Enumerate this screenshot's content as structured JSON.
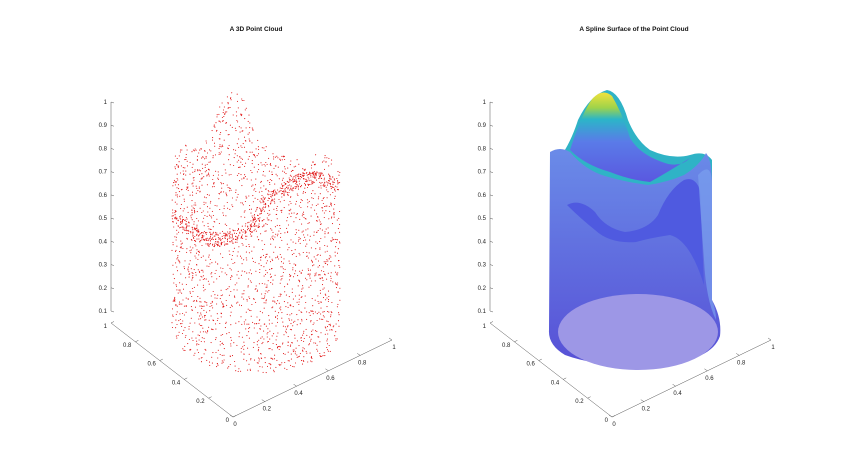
{
  "colors": {
    "point": "#e01010",
    "axis": "#555555",
    "surface_top": "#f2e23c",
    "surface_mid": "#2bb5c8",
    "surface_low": "#5a62e6",
    "surface_base": "#9d97e6"
  },
  "chart_data": [
    {
      "type": "scatter3d",
      "title": "A 3D Point Cloud",
      "xlim": [
        0,
        1
      ],
      "ylim": [
        0,
        1
      ],
      "zlim": [
        0.1,
        1
      ],
      "z_ticks": [
        "0.1",
        "0.2",
        "0.3",
        "0.4",
        "0.5",
        "0.6",
        "0.7",
        "0.8",
        "0.9",
        "1"
      ],
      "x_ticks": [
        "0",
        "0.2",
        "0.4",
        "0.6",
        "0.8",
        "1"
      ],
      "y_ticks": [
        "0",
        "0.2",
        "0.4",
        "0.6",
        "0.8",
        "1"
      ],
      "grid": false
    },
    {
      "type": "surface3d",
      "title": "A Spline Surface of the Point Cloud",
      "xlim": [
        0,
        1
      ],
      "ylim": [
        0,
        1
      ],
      "zlim": [
        0.1,
        1
      ],
      "z_ticks": [
        "0.1",
        "0.2",
        "0.3",
        "0.4",
        "0.5",
        "0.6",
        "0.7",
        "0.8",
        "0.9",
        "1"
      ],
      "x_ticks": [
        "0",
        "0.2",
        "0.4",
        "0.6",
        "0.8",
        "1"
      ],
      "y_ticks": [
        "0",
        "0.2",
        "0.4",
        "0.6",
        "0.8",
        "1"
      ],
      "grid": false
    }
  ]
}
